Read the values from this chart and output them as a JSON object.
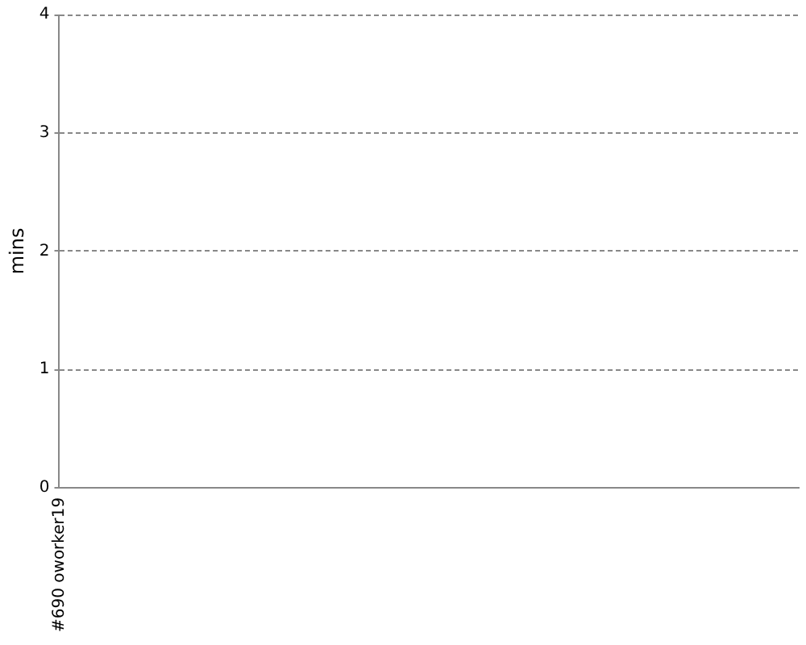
{
  "chart_data": {
    "type": "bar",
    "categories": [
      "#690 oworker19"
    ],
    "values": [
      0
    ],
    "ylabel": "mins",
    "ylim": [
      0,
      4
    ],
    "yticks": [
      0,
      1,
      2,
      3,
      4
    ],
    "grid": "y"
  }
}
